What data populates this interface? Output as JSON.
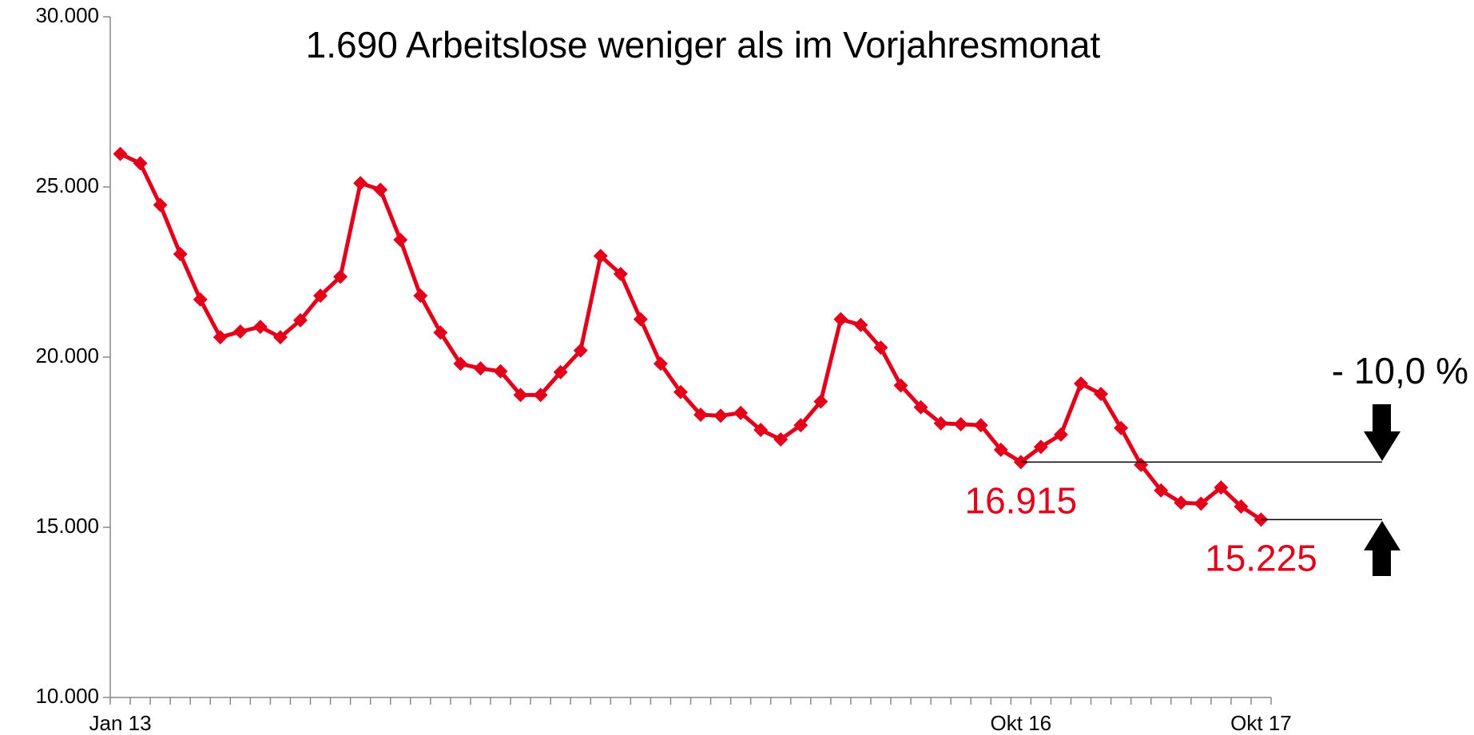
{
  "chart_data": {
    "type": "line",
    "title": "1.690 Arbeitslose weniger als im Vorjahresmonat",
    "annotations": [
      "- 10,0 %"
    ],
    "categories": [
      "Jan 13",
      null,
      null,
      null,
      null,
      null,
      null,
      null,
      null,
      null,
      null,
      null,
      null,
      null,
      null,
      null,
      null,
      null,
      null,
      null,
      null,
      null,
      null,
      null,
      null,
      null,
      null,
      null,
      null,
      null,
      null,
      null,
      null,
      null,
      null,
      null,
      null,
      null,
      null,
      null,
      null,
      null,
      null,
      null,
      null,
      "Okt 16",
      null,
      null,
      null,
      null,
      null,
      null,
      null,
      null,
      null,
      null,
      null,
      "Okt 17"
    ],
    "values": [
      25972,
      25694,
      24472,
      23028,
      21694,
      20583,
      20750,
      20889,
      20583,
      21083,
      21806,
      22361,
      25111,
      24917,
      23444,
      21806,
      20722,
      19806,
      19667,
      19583,
      18889,
      18889,
      19556,
      20194,
      22972,
      22444,
      21111,
      19806,
      18972,
      18306,
      18278,
      18361,
      17861,
      17583,
      18000,
      18694,
      21111,
      20944,
      20278,
      19167,
      18528,
      18056,
      18028,
      18000,
      17278,
      16915,
      17361,
      17722,
      19222,
      18917,
      17917,
      16833,
      16083,
      15722,
      15694,
      16167,
      15611,
      15225
    ],
    "value_labels": [
      null,
      null,
      null,
      null,
      null,
      null,
      null,
      null,
      null,
      null,
      null,
      null,
      null,
      null,
      null,
      null,
      null,
      null,
      null,
      null,
      null,
      null,
      null,
      null,
      null,
      null,
      null,
      null,
      null,
      null,
      null,
      null,
      null,
      null,
      null,
      null,
      null,
      null,
      null,
      null,
      null,
      null,
      null,
      null,
      null,
      "16.915",
      null,
      null,
      null,
      null,
      null,
      null,
      null,
      null,
      null,
      null,
      null,
      "15.225"
    ],
    "color": "#e2001a",
    "ylim": [
      10000,
      30000
    ],
    "yticks": [
      {
        "value": 10000,
        "label": "10.000"
      },
      {
        "value": 15000,
        "label": "15.000"
      },
      {
        "value": 20000,
        "label": "20.000"
      },
      {
        "value": 25000,
        "label": "25.000"
      },
      {
        "value": 30000,
        "label": "30.000"
      }
    ],
    "grid": false
  }
}
